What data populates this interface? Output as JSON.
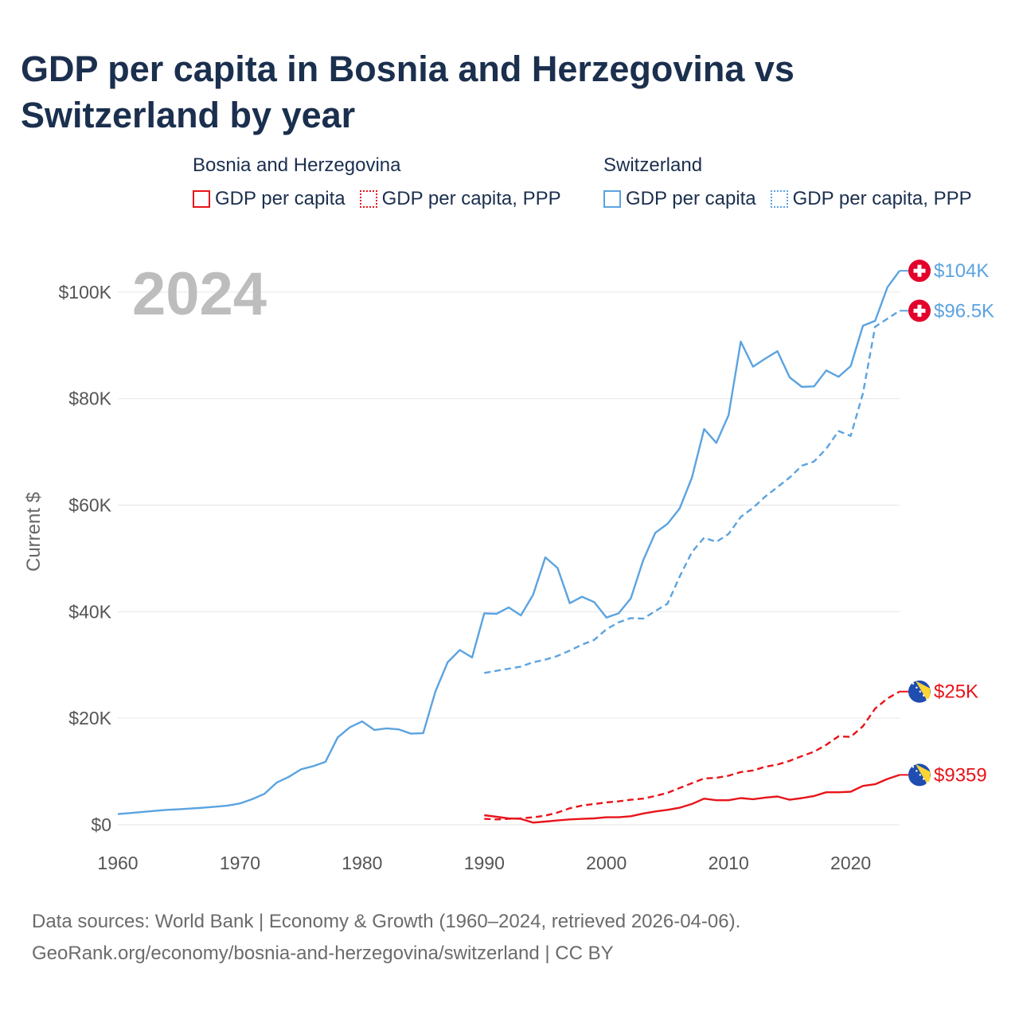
{
  "colors": {
    "bosnia": "#e8141a",
    "switzerland": "#5ba3e0",
    "grid": "#e6e6e6",
    "flag_ch": "#e3002b",
    "flag_bih_blue": "#1f4db0",
    "flag_bih_yellow": "#fcd535"
  },
  "legend": {
    "bosnia": {
      "title": "Bosnia and Herzegovina",
      "gdp": "GDP per capita",
      "ppp": "GDP per capita, PPP"
    },
    "switzerland": {
      "title": "Switzerland",
      "gdp": "GDP per capita",
      "ppp": "GDP per capita, PPP"
    }
  },
  "footer": {
    "line1": "Data sources: World Bank | Economy & Growth (1960–2024, retrieved 2026-04-06).",
    "line2": "GeoRank.org/economy/bosnia-and-herzegovina/switzerland | CC BY"
  },
  "chart_data": {
    "type": "line",
    "title": "GDP per capita in Bosnia and Herzegovina vs Switzerland by year",
    "ylabel": "Current $",
    "xlabel": "",
    "year_overlay": "2024",
    "xlim": [
      1960,
      2024
    ],
    "ylim": [
      0,
      110000
    ],
    "x_ticks": [
      1960,
      1970,
      1980,
      1990,
      2000,
      2010,
      2020
    ],
    "y_ticks": [
      {
        "value": 0,
        "label": "$0"
      },
      {
        "value": 20000,
        "label": "$20K"
      },
      {
        "value": 40000,
        "label": "$40K"
      },
      {
        "value": 60000,
        "label": "$60K"
      },
      {
        "value": 80000,
        "label": "$80K"
      },
      {
        "value": 100000,
        "label": "$100K"
      }
    ],
    "grid": true,
    "series": [
      {
        "name": "Switzerland GDP per capita",
        "country": "switzerland",
        "style": "solid",
        "end_label": "$104K",
        "x": [
          1960,
          1961,
          1962,
          1963,
          1964,
          1965,
          1966,
          1967,
          1968,
          1969,
          1970,
          1971,
          1972,
          1973,
          1974,
          1975,
          1976,
          1977,
          1978,
          1979,
          1980,
          1981,
          1982,
          1983,
          1984,
          1985,
          1986,
          1987,
          1988,
          1989,
          1990,
          1991,
          1992,
          1993,
          1994,
          1995,
          1996,
          1997,
          1998,
          1999,
          2000,
          2001,
          2002,
          2003,
          2004,
          2005,
          2006,
          2007,
          2008,
          2009,
          2010,
          2011,
          2012,
          2013,
          2014,
          2015,
          2016,
          2017,
          2018,
          2019,
          2020,
          2021,
          2022,
          2023,
          2024
        ],
        "values": [
          2000,
          2200,
          2400,
          2600,
          2800,
          2900,
          3050,
          3200,
          3400,
          3600,
          4000,
          4800,
          5800,
          7900,
          9000,
          10400,
          11000,
          11800,
          16400,
          18300,
          19400,
          17800,
          18100,
          17900,
          17100,
          17200,
          25000,
          30500,
          32800,
          31400,
          39700,
          39600,
          40800,
          39300,
          43200,
          50200,
          48200,
          41600,
          42800,
          41800,
          38900,
          39700,
          42500,
          49600,
          54800,
          56500,
          59400,
          65200,
          74300,
          71700,
          76900,
          90700,
          86000,
          87500,
          88900,
          84000,
          82200,
          82300,
          85300,
          84100,
          86100,
          93700,
          94600,
          100900,
          104000
        ]
      },
      {
        "name": "Switzerland GDP per capita, PPP",
        "country": "switzerland",
        "style": "dashed",
        "end_label": "$96.5K",
        "x": [
          1990,
          1991,
          1992,
          1993,
          1994,
          1995,
          1996,
          1997,
          1998,
          1999,
          2000,
          2001,
          2002,
          2003,
          2004,
          2005,
          2006,
          2007,
          2008,
          2009,
          2010,
          2011,
          2012,
          2013,
          2014,
          2015,
          2016,
          2017,
          2018,
          2019,
          2020,
          2021,
          2022,
          2023,
          2024
        ],
        "values": [
          28500,
          28900,
          29300,
          29700,
          30500,
          31000,
          31700,
          32700,
          33800,
          34700,
          36700,
          38000,
          38800,
          38700,
          40100,
          41500,
          46600,
          51200,
          53900,
          53100,
          54600,
          57800,
          59500,
          61600,
          63400,
          65200,
          67400,
          68200,
          70600,
          73900,
          73000,
          81000,
          93500,
          95000,
          96500
        ]
      },
      {
        "name": "Bosnia and Herzegovina GDP per capita",
        "country": "bosnia",
        "style": "solid",
        "end_label": "$9359",
        "x": [
          1990,
          1991,
          1992,
          1993,
          1994,
          1995,
          1996,
          1997,
          1998,
          1999,
          2000,
          2001,
          2002,
          2003,
          2004,
          2005,
          2006,
          2007,
          2008,
          2009,
          2010,
          2011,
          2012,
          2013,
          2014,
          2015,
          2016,
          2017,
          2018,
          2019,
          2020,
          2021,
          2022,
          2023,
          2024
        ],
        "values": [
          1800,
          1500,
          1200,
          1100,
          400,
          600,
          800,
          1000,
          1100,
          1200,
          1400,
          1400,
          1600,
          2100,
          2500,
          2800,
          3200,
          3900,
          4900,
          4600,
          4600,
          5000,
          4800,
          5100,
          5300,
          4700,
          5000,
          5400,
          6100,
          6100,
          6200,
          7300,
          7600,
          8600,
          9359
        ]
      },
      {
        "name": "Bosnia and Herzegovina GDP per capita, PPP",
        "country": "bosnia",
        "style": "dashed",
        "end_label": "$25K",
        "x": [
          1990,
          1991,
          1992,
          1993,
          1994,
          1995,
          1996,
          1997,
          1998,
          1999,
          2000,
          2001,
          2002,
          2003,
          2004,
          2005,
          2006,
          2007,
          2008,
          2009,
          2010,
          2011,
          2012,
          2013,
          2014,
          2015,
          2016,
          2017,
          2018,
          2019,
          2020,
          2021,
          2022,
          2023,
          2024
        ],
        "values": [
          1100,
          1000,
          1100,
          1200,
          1400,
          1700,
          2300,
          3100,
          3600,
          3900,
          4200,
          4400,
          4700,
          4900,
          5400,
          6000,
          6900,
          7800,
          8700,
          8800,
          9200,
          9900,
          10200,
          10900,
          11300,
          12000,
          12900,
          13700,
          15000,
          16600,
          16500,
          18500,
          21800,
          23700,
          25000
        ]
      }
    ]
  }
}
